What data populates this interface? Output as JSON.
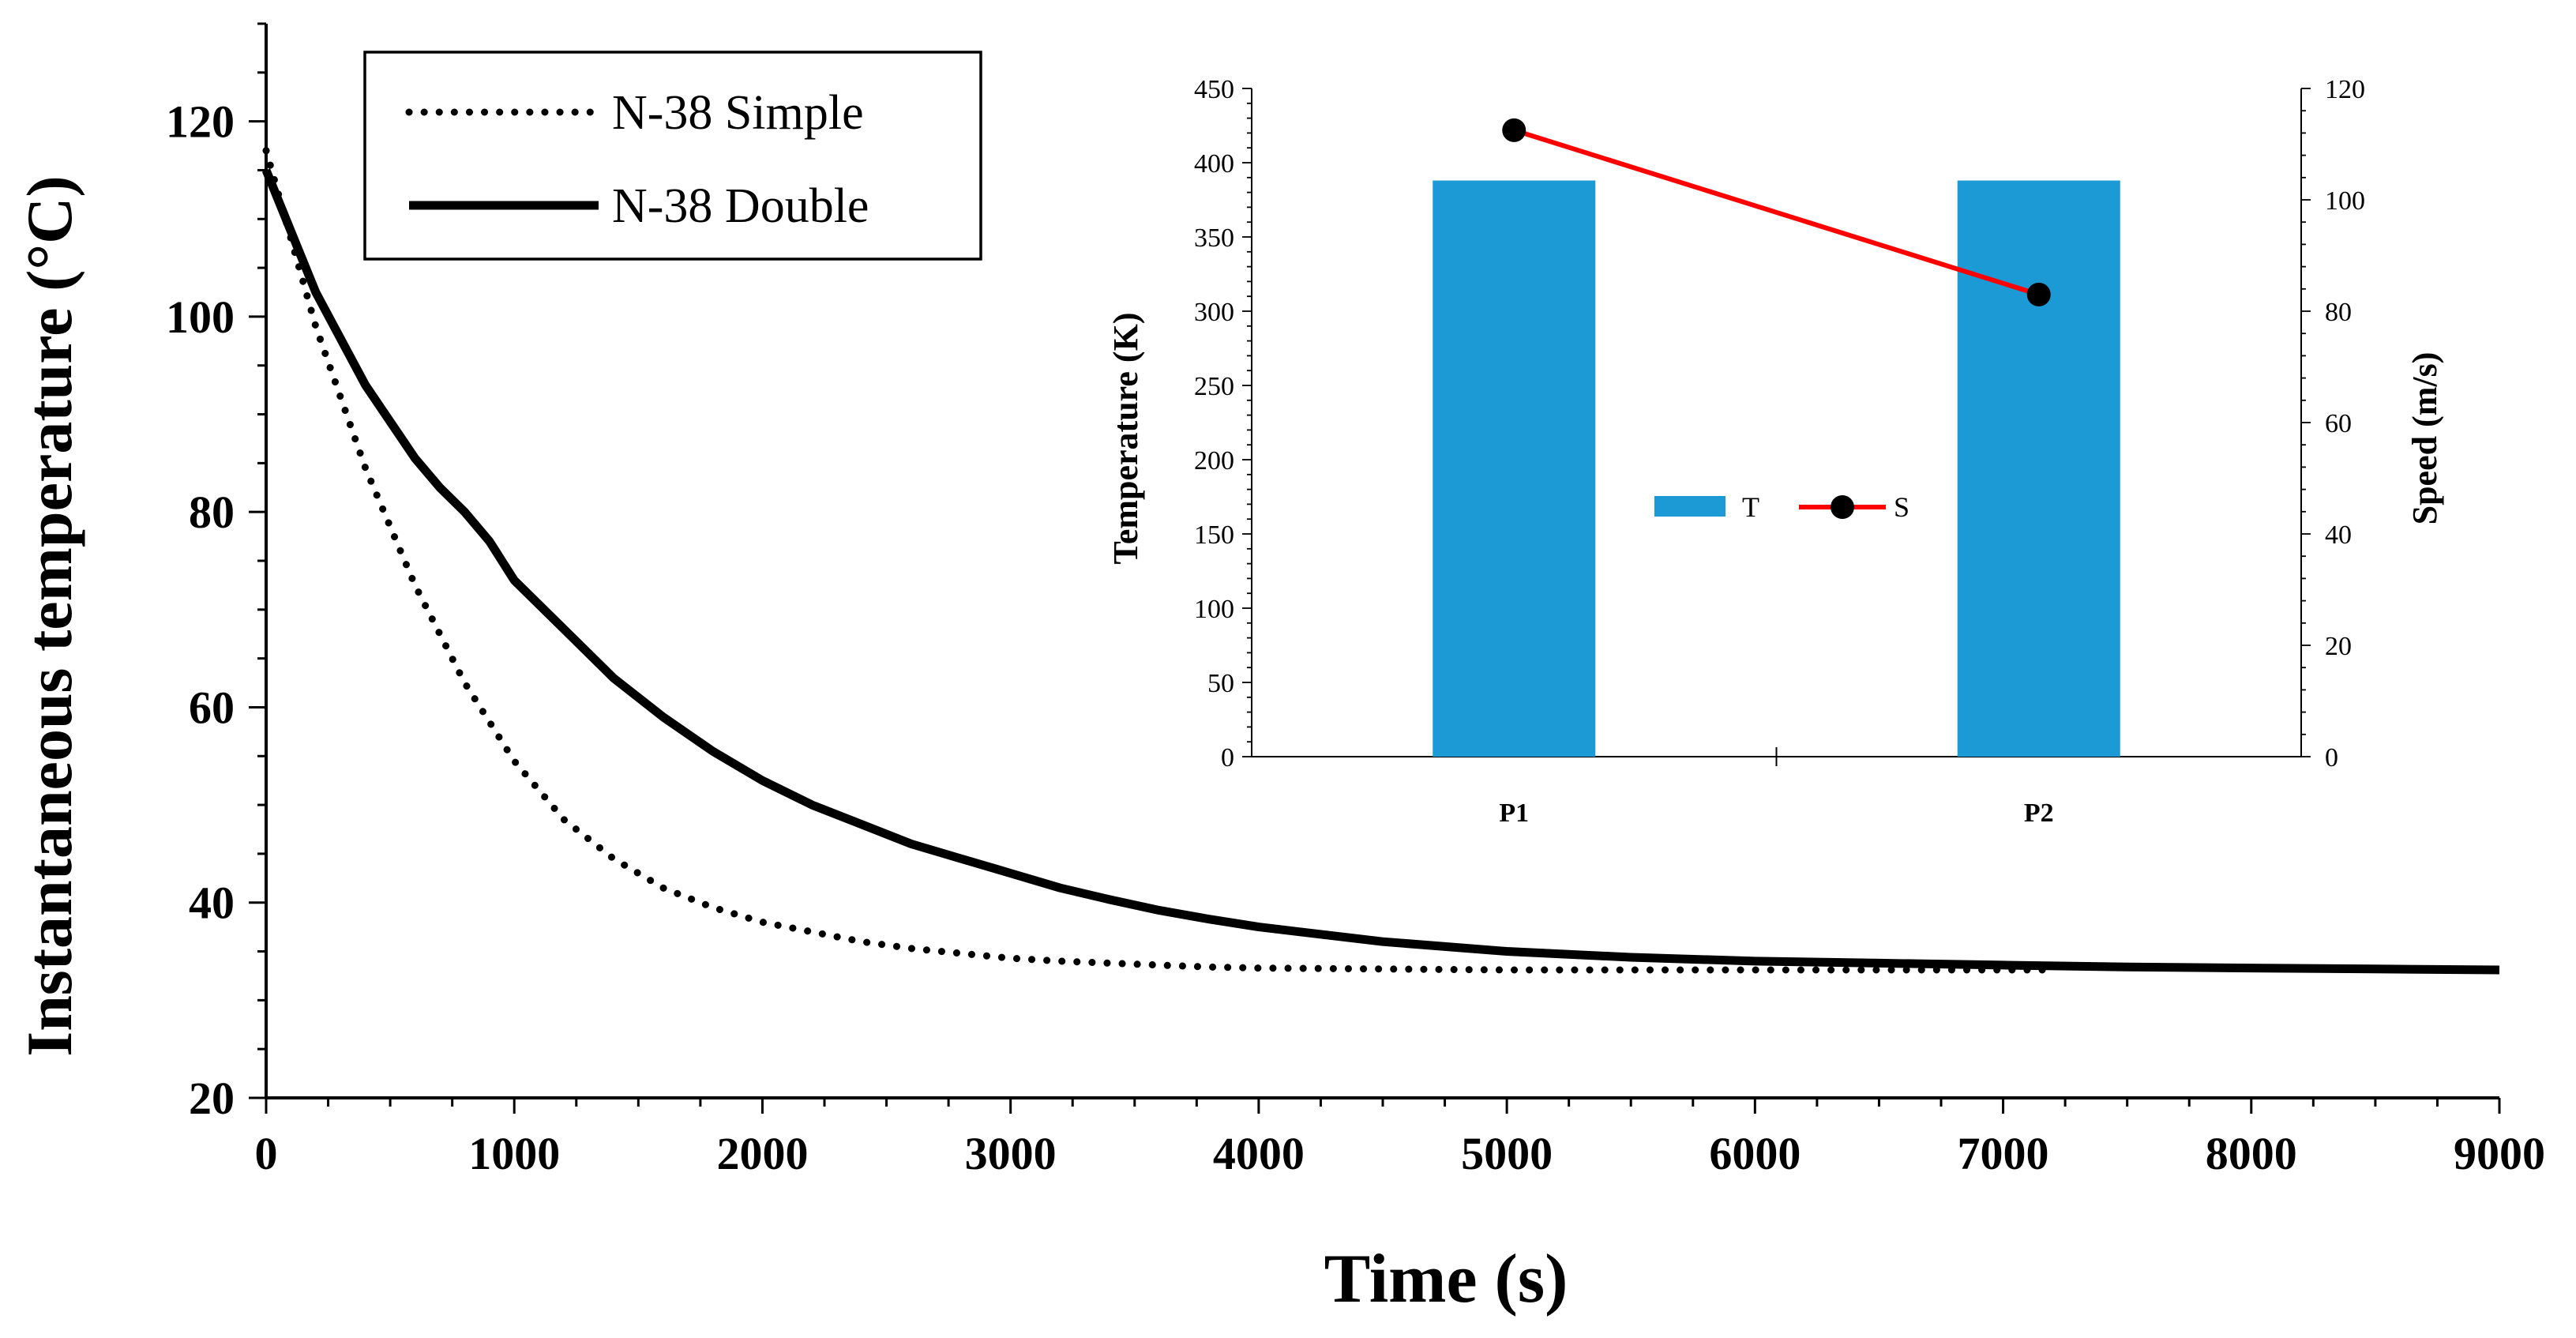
{
  "chart_data": [
    {
      "type": "line",
      "xlabel": "Time (s)",
      "ylabel": "Instantaneous temperature (°C)",
      "xlim": [
        0,
        9000
      ],
      "ylim": [
        20,
        130
      ],
      "x_ticks": [
        "0",
        "1000",
        "2000",
        "3000",
        "4000",
        "5000",
        "6000",
        "7000",
        "8000",
        "9000"
      ],
      "y_ticks": [
        "20",
        "40",
        "60",
        "80",
        "100",
        "120"
      ],
      "grid": false,
      "legend_position": "top-left",
      "series": [
        {
          "name": "N-38 Simple",
          "style": "dotted",
          "x": [
            0,
            200,
            400,
            600,
            800,
            1000,
            1200,
            1400,
            1600,
            1800,
            2000,
            2200,
            2400,
            2600,
            2800,
            3000,
            3200,
            3400,
            3600,
            3800,
            4000,
            4500,
            5000,
            5500,
            6000,
            6500,
            7000,
            7200
          ],
          "y": [
            117,
            99,
            84.5,
            72.5,
            62.5,
            54.5,
            48.5,
            44.5,
            41.5,
            39.5,
            38,
            37,
            36,
            35.3,
            34.8,
            34.3,
            34,
            33.8,
            33.6,
            33.4,
            33.3,
            33.2,
            33.1,
            33.1,
            33.1,
            33.1,
            33.1,
            33.1
          ]
        },
        {
          "name": "N-38 Double",
          "style": "solid",
          "x": [
            0,
            200,
            400,
            600,
            700,
            800,
            900,
            1000,
            1200,
            1400,
            1600,
            1800,
            2000,
            2200,
            2400,
            2600,
            2800,
            3000,
            3200,
            3400,
            3600,
            3800,
            4000,
            4500,
            5000,
            5500,
            6000,
            6500,
            7000,
            7500,
            8000,
            8500,
            9000
          ],
          "y": [
            115,
            102.5,
            93,
            85.5,
            82.5,
            80,
            77,
            73,
            68,
            63,
            59,
            55.5,
            52.5,
            50,
            48,
            46,
            44.5,
            43,
            41.5,
            40.3,
            39.2,
            38.3,
            37.5,
            36,
            35,
            34.4,
            34,
            33.8,
            33.6,
            33.4,
            33.3,
            33.2,
            33.1
          ]
        }
      ]
    },
    {
      "type": "bar",
      "inset": true,
      "categories": [
        "P1",
        "P2"
      ],
      "ylabel": "Temperature (K)",
      "y2label": "Speed (m/s)",
      "ylim": [
        0,
        450
      ],
      "y2lim": [
        0,
        120
      ],
      "y_ticks": [
        "0",
        "50",
        "100",
        "150",
        "200",
        "250",
        "300",
        "350",
        "400",
        "450"
      ],
      "y2_ticks": [
        "0",
        "20",
        "40",
        "60",
        "80",
        "100",
        "120"
      ],
      "legend_position": "center",
      "series": [
        {
          "name": "T",
          "type": "bar",
          "axis": "left",
          "color": "#1b9ad6",
          "values": [
            388,
            388
          ]
        },
        {
          "name": "S",
          "type": "line",
          "axis": "right",
          "color": "#ff0000",
          "marker_color": "#000000",
          "values": [
            112.5,
            83
          ]
        }
      ]
    }
  ]
}
